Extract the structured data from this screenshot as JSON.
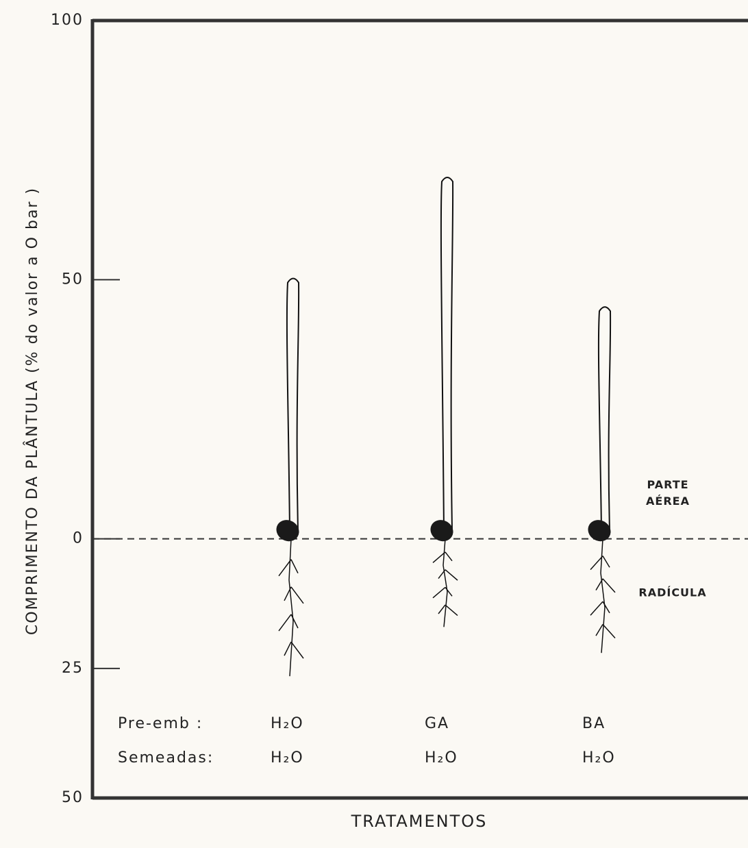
{
  "chart_data": {
    "type": "seedling",
    "y_label": "COMPRIMENTO DA PLÂNTULA (% do valor a O bar )",
    "x_label": "TRATAMENTOS",
    "ylim": [
      -50,
      100
    ],
    "yticks": [
      {
        "value": 100,
        "label": "100"
      },
      {
        "value": 50,
        "label": "50"
      },
      {
        "value": 0,
        "label": "0"
      },
      {
        "value": -25,
        "label": "25"
      },
      {
        "value": -50,
        "label": "50"
      }
    ],
    "rows": [
      {
        "label": "Pre-emb :",
        "values": [
          "H₂O",
          "GA",
          "BA"
        ]
      },
      {
        "label": "Semeadas:",
        "values": [
          "H₂O",
          "H₂O",
          "H₂O"
        ]
      }
    ],
    "series": [
      {
        "name": "PARTE AÉREA",
        "color": "#111111",
        "values": [
          50.5,
          70,
          45
        ]
      },
      {
        "name": "RADÍCULA",
        "color": "#111111",
        "values": [
          -26.5,
          -17,
          -22
        ]
      }
    ]
  }
}
